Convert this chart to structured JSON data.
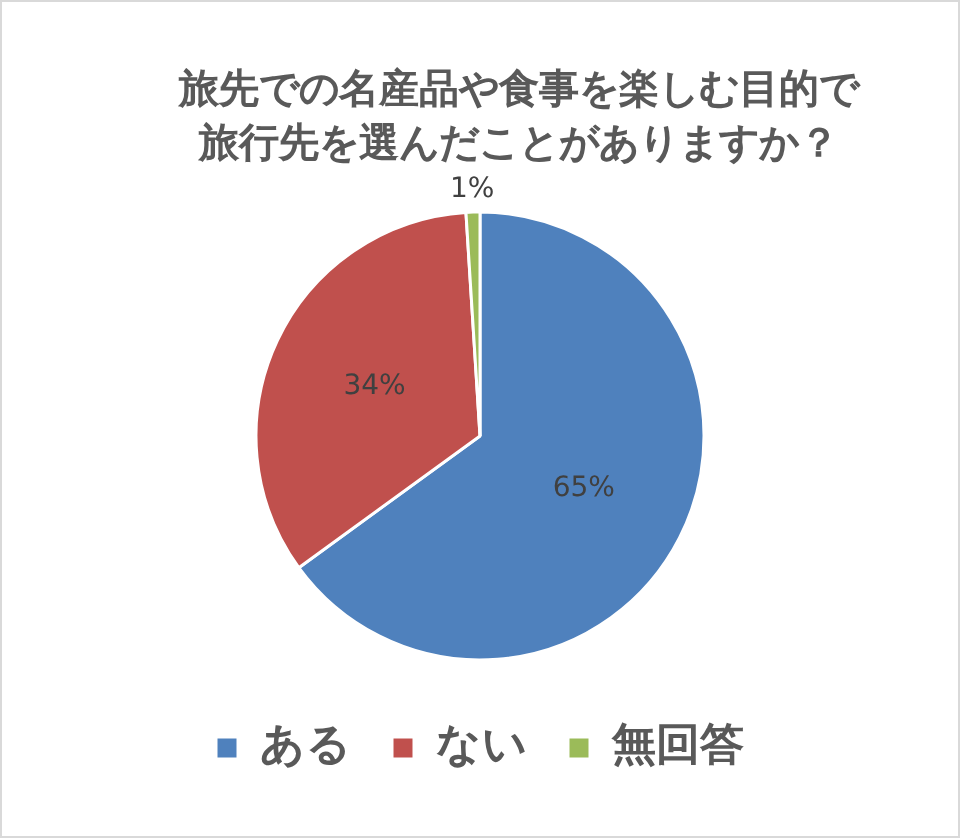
{
  "chart_data": {
    "type": "pie",
    "title": "旅先での名産品や食事を楽しむ目的で旅行先を選んだことがありますか？",
    "categories": [
      "ある",
      "ない",
      "無回答"
    ],
    "values": [
      65,
      34,
      1
    ],
    "colors": [
      "#4f81bd",
      "#c0504d",
      "#9bbb59"
    ],
    "value_labels": [
      "65%",
      "34%",
      "1%"
    ],
    "legend": "bottom"
  }
}
